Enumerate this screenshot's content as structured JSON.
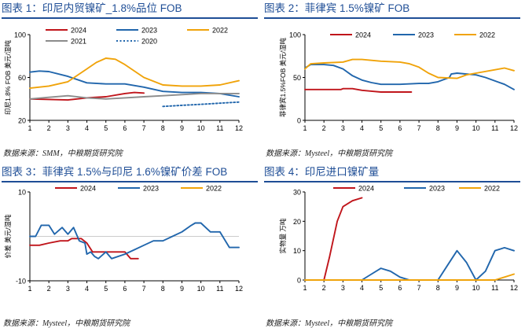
{
  "colors": {
    "c2024": "#c0151b",
    "c2023": "#2166ac",
    "c2022": "#f0a30a",
    "c2021": "#8c8c8c",
    "c2020": "#2166ac",
    "axis": "#000000",
    "title": "#1f4e96"
  },
  "chart_data": [
    {
      "type": "line",
      "title": "图表 1：印尼内贸镍矿_1.8%品位 FOB",
      "ylabel": "印尼1.8% FOB 美元/湿吨",
      "source": "数据来源：SMM，中粮期货研究院",
      "x_ticks": [
        "1",
        "2",
        "3",
        "4",
        "5",
        "6",
        "7",
        "8",
        "9",
        "10",
        "11",
        "12"
      ],
      "y_ticks": [
        "100",
        "60",
        "20"
      ],
      "xlim": [
        1,
        12
      ],
      "ylim": [
        20,
        100
      ],
      "legend_position": "top",
      "series": [
        {
          "name": "2024",
          "color": "#c0151b",
          "dash": "",
          "x": [
            1,
            2,
            3,
            4,
            5,
            6,
            6.5,
            7
          ],
          "y": [
            40,
            39.5,
            39,
            41,
            42,
            45,
            46,
            45.5
          ]
        },
        {
          "name": "2023",
          "color": "#2166ac",
          "dash": "",
          "x": [
            1,
            1.5,
            2,
            3,
            4,
            5,
            6,
            7,
            8,
            9,
            10,
            11,
            12
          ],
          "y": [
            65,
            66,
            65.5,
            61,
            55,
            54,
            54,
            51,
            47,
            46,
            46,
            45,
            42
          ]
        },
        {
          "name": "2022",
          "color": "#f0a30a",
          "dash": "",
          "x": [
            1,
            2,
            3,
            4,
            4.5,
            5,
            5.5,
            6,
            7,
            8,
            9,
            10,
            11,
            12
          ],
          "y": [
            50,
            52,
            56,
            68,
            74,
            78,
            77,
            72,
            60,
            53,
            52,
            52,
            53,
            57
          ]
        },
        {
          "name": "2021",
          "color": "#8c8c8c",
          "dash": "",
          "x": [
            1,
            2,
            3,
            4,
            5,
            6,
            7,
            8,
            9,
            10,
            11,
            12
          ],
          "y": [
            40,
            41.5,
            43,
            41,
            40,
            41,
            42,
            43,
            44,
            45,
            45,
            45
          ]
        },
        {
          "name": "2020",
          "color": "#2166ac",
          "dash": "2,2.5",
          "x": [
            8,
            9,
            10,
            11,
            12
          ],
          "y": [
            33,
            34,
            35,
            36,
            37
          ]
        }
      ]
    },
    {
      "type": "line",
      "title": "图表 2：菲律宾 1.5%镍矿 FOB",
      "ylabel": "菲律宾1.5%FOB 美元/湿吨",
      "source": "数据来源：Mysteel，中粮期货研究院",
      "x_ticks": [
        "1",
        "2",
        "3",
        "4",
        "5",
        "6",
        "7",
        "8",
        "9",
        "10",
        "11",
        "12"
      ],
      "y_ticks": [
        "100",
        "50",
        "0"
      ],
      "xlim": [
        1,
        12
      ],
      "ylim": [
        0,
        100
      ],
      "legend_position": "top",
      "series": [
        {
          "name": "2024",
          "color": "#c0151b",
          "dash": "",
          "x": [
            1,
            2,
            2.9,
            3,
            3.5,
            4,
            4.5,
            5,
            6,
            6.6
          ],
          "y": [
            36,
            36,
            36,
            37,
            37,
            35,
            34,
            33,
            33,
            33
          ]
        },
        {
          "name": "2023",
          "color": "#2166ac",
          "dash": "",
          "x": [
            1,
            1.3,
            2,
            2.5,
            3,
            3.5,
            4,
            4.5,
            5,
            6,
            7,
            7.5,
            8,
            8.6,
            8.7,
            9,
            10,
            10.5,
            11,
            11.5,
            12
          ],
          "y": [
            61,
            65,
            65,
            64,
            60,
            52,
            47,
            44,
            42,
            42,
            43,
            43,
            45,
            50,
            54,
            55,
            53,
            50,
            46,
            42,
            36
          ]
        },
        {
          "name": "2022",
          "color": "#f0a30a",
          "dash": "",
          "x": [
            1,
            1.3,
            2,
            3,
            3.5,
            4,
            5,
            6,
            6.5,
            7,
            7.5,
            8,
            9,
            9.5,
            10,
            11,
            11.5,
            12
          ],
          "y": [
            60,
            66,
            67,
            68,
            71,
            71,
            69,
            68,
            66,
            62,
            55,
            50,
            49,
            53,
            55,
            59,
            61,
            58
          ]
        }
      ]
    },
    {
      "type": "line",
      "title": "图表 3：菲律宾 1.5%与印尼 1.6%镍矿价差 FOB",
      "ylabel": "价差 美元/湿吨",
      "source": "数据来源：Mysteel，中粮期货研究院",
      "x_ticks": [
        "1",
        "2",
        "3",
        "4",
        "5",
        "6",
        "7",
        "8",
        "9",
        "10",
        "11",
        "12"
      ],
      "y_ticks": [
        "10",
        "-10"
      ],
      "xlim": [
        1,
        12
      ],
      "ylim": [
        -10,
        10
      ],
      "legend_position": "top",
      "series": [
        {
          "name": "2024",
          "color": "#c0151b",
          "dash": "",
          "x": [
            1,
            1.5,
            2,
            2.6,
            3,
            3.2,
            3.7,
            4,
            4.3,
            4.5,
            5,
            5.5,
            6,
            6.3,
            6.7
          ],
          "y": [
            -2,
            -2,
            -1.5,
            -1,
            -1,
            -0.5,
            -0.5,
            -1.5,
            -3.5,
            -3.5,
            -3.5,
            -3.5,
            -3.5,
            -5,
            -5
          ]
        },
        {
          "name": "2023",
          "color": "#2166ac",
          "dash": "",
          "x": [
            1,
            1.3,
            1.6,
            2,
            2.3,
            2.7,
            3,
            3.3,
            3.6,
            3.9,
            4,
            4.2,
            4.4,
            4.6,
            5,
            5.3,
            6,
            6.5,
            7,
            7.5,
            8,
            8.5,
            9,
            9.5,
            9.7,
            10,
            10.5,
            11,
            11.5,
            11.7,
            12
          ],
          "y": [
            0,
            0,
            2.5,
            2.5,
            0.5,
            2,
            0.5,
            2,
            -1,
            -1.5,
            -4,
            -3.5,
            -4.5,
            -5,
            -3.5,
            -5,
            -4,
            -3,
            -2,
            -1,
            -1,
            0,
            1,
            2.5,
            3,
            3,
            1,
            1,
            -2.5,
            -2.5,
            -2.5
          ]
        },
        {
          "name": "2022",
          "color": "#f0a30a",
          "dash": "",
          "x": [],
          "y": []
        }
      ]
    },
    {
      "type": "line",
      "title": "图表 4：印尼进口镍矿量",
      "ylabel": "实物量 万吨",
      "source": "数据来源：Mysteel，中粮期货研究院",
      "x_ticks": [
        "1",
        "2",
        "3",
        "4",
        "5",
        "6",
        "7",
        "8",
        "9",
        "10",
        "11",
        "12"
      ],
      "y_ticks": [
        "30",
        "20",
        "10",
        "0"
      ],
      "xlim": [
        1,
        12
      ],
      "ylim": [
        0,
        30
      ],
      "legend_position": "top",
      "series": [
        {
          "name": "2024",
          "color": "#c0151b",
          "dash": "",
          "x": [
            1,
            1.5,
            2,
            2.3,
            2.7,
            3,
            3.5,
            4
          ],
          "y": [
            0,
            0,
            0,
            8,
            20,
            25,
            27,
            28
          ]
        },
        {
          "name": "2023",
          "color": "#2166ac",
          "dash": "",
          "x": [
            1,
            2,
            3,
            4,
            4.5,
            5,
            5.5,
            6,
            6.5,
            7,
            8,
            8.5,
            9,
            9.5,
            10,
            10.5,
            11,
            11.5,
            12
          ],
          "y": [
            0,
            0,
            0,
            0,
            2,
            4,
            3,
            1,
            0,
            0,
            0,
            5,
            10,
            6,
            0,
            3,
            10,
            11,
            10
          ]
        },
        {
          "name": "2022",
          "color": "#f0a30a",
          "dash": "",
          "x": [
            1,
            3,
            5,
            7,
            9,
            10,
            11,
            11.5,
            12
          ],
          "y": [
            0,
            0,
            0,
            0,
            0,
            0,
            0,
            1,
            2
          ]
        }
      ]
    }
  ]
}
